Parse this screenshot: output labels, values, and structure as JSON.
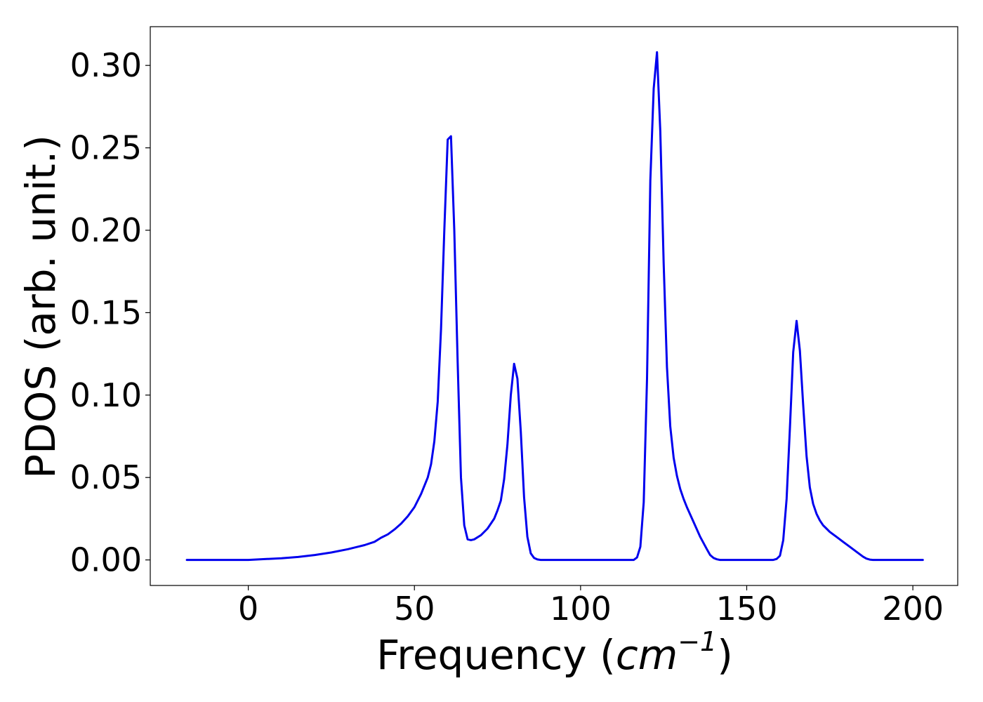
{
  "chart_data": {
    "type": "line",
    "title": "",
    "xlabel": "Frequency (",
    "xlabel_math": "cm",
    "xlabel_sup": "−1",
    "xlabel_close": ")",
    "ylabel": "PDOS (arb. unit.)",
    "xlim": [
      -29.5,
      213.5
    ],
    "ylim": [
      -0.0155,
      0.3235
    ],
    "x_ticks": [
      0,
      50,
      100,
      150,
      200
    ],
    "x_tick_labels": [
      "0",
      "50",
      "100",
      "150",
      "200"
    ],
    "y_ticks": [
      0.0,
      0.05,
      0.1,
      0.15,
      0.2,
      0.25,
      0.3
    ],
    "y_tick_labels": [
      "0.00",
      "0.05",
      "0.10",
      "0.15",
      "0.20",
      "0.25",
      "0.30"
    ],
    "grid": false,
    "series": [
      {
        "color": "#0000ee",
        "x": [
          -18.5,
          0,
          5,
          10,
          15,
          20,
          25,
          30,
          35,
          38,
          40,
          42,
          44,
          46,
          48,
          50,
          52,
          54,
          55,
          56,
          57,
          58,
          59,
          60,
          61,
          62,
          63,
          64,
          65,
          66,
          67,
          68,
          70,
          72,
          74,
          75,
          76,
          77,
          78,
          79,
          80,
          81,
          82,
          83,
          84,
          85,
          86,
          87,
          88,
          90,
          100,
          110,
          116,
          117,
          118,
          119,
          120,
          121,
          122,
          123,
          124,
          125,
          126,
          127,
          128,
          129,
          130,
          131,
          132,
          134,
          136,
          138,
          139,
          140,
          141,
          142,
          145,
          150,
          155,
          158,
          159,
          160,
          161,
          162,
          163,
          164,
          165,
          166,
          167,
          168,
          169,
          170,
          171,
          172,
          173,
          174,
          175,
          177,
          179,
          181,
          183,
          185,
          186,
          187,
          188,
          190,
          195,
          200,
          203
        ],
        "y": [
          0,
          0,
          0.0005,
          0.001,
          0.0018,
          0.003,
          0.0045,
          0.0065,
          0.009,
          0.011,
          0.0135,
          0.0155,
          0.0185,
          0.022,
          0.0265,
          0.032,
          0.04,
          0.05,
          0.058,
          0.072,
          0.096,
          0.14,
          0.2,
          0.255,
          0.257,
          0.2,
          0.12,
          0.05,
          0.021,
          0.0125,
          0.012,
          0.0125,
          0.015,
          0.019,
          0.025,
          0.03,
          0.036,
          0.049,
          0.07,
          0.1,
          0.119,
          0.11,
          0.078,
          0.038,
          0.014,
          0.004,
          0.0012,
          0.0003,
          0,
          0,
          0,
          0,
          0,
          0.0015,
          0.008,
          0.035,
          0.11,
          0.23,
          0.286,
          0.308,
          0.26,
          0.18,
          0.117,
          0.081,
          0.062,
          0.051,
          0.043,
          0.037,
          0.032,
          0.023,
          0.014,
          0.0065,
          0.003,
          0.0012,
          0.0004,
          0,
          0,
          0,
          0,
          0,
          0.0006,
          0.0025,
          0.012,
          0.037,
          0.08,
          0.126,
          0.145,
          0.127,
          0.094,
          0.063,
          0.044,
          0.034,
          0.028,
          0.024,
          0.021,
          0.019,
          0.017,
          0.014,
          0.011,
          0.008,
          0.005,
          0.002,
          0.0008,
          0.0002,
          0,
          0,
          0,
          0,
          0
        ]
      }
    ]
  }
}
